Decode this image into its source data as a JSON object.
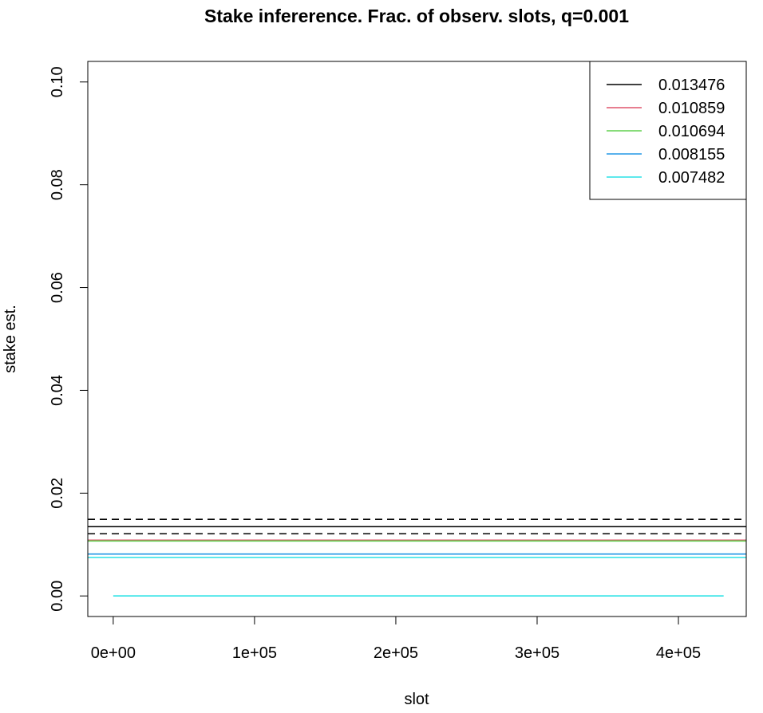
{
  "chart_data": {
    "type": "line",
    "title": "Stake infererence. Frac. of observ. slots, q=0.001",
    "xlabel": "slot",
    "ylabel": "stake est.",
    "xlim": [
      -18000,
      448000
    ],
    "ylim": [
      -0.004,
      0.104
    ],
    "x_ticks": [
      {
        "value": 0,
        "label": "0e+00"
      },
      {
        "value": 100000,
        "label": "1e+05"
      },
      {
        "value": 200000,
        "label": "2e+05"
      },
      {
        "value": 300000,
        "label": "3e+05"
      },
      {
        "value": 400000,
        "label": "4e+05"
      }
    ],
    "y_ticks": [
      {
        "value": 0.0,
        "label": "0.00"
      },
      {
        "value": 0.02,
        "label": "0.02"
      },
      {
        "value": 0.04,
        "label": "0.04"
      },
      {
        "value": 0.06,
        "label": "0.06"
      },
      {
        "value": 0.08,
        "label": "0.08"
      },
      {
        "value": 0.1,
        "label": "0.10"
      }
    ],
    "grid": false,
    "legend_position": "top-right",
    "series": [
      {
        "name": "0.013476",
        "color": "#000000",
        "x": [
          -18000,
          448000
        ],
        "y": [
          0.013476,
          0.013476
        ]
      },
      {
        "name": "0.010859",
        "color": "#DF536B",
        "x": [
          -18000,
          448000
        ],
        "y": [
          0.010859,
          0.010859
        ]
      },
      {
        "name": "0.010694",
        "color": "#61D04F",
        "x": [
          -18000,
          448000
        ],
        "y": [
          0.010694,
          0.010694
        ]
      },
      {
        "name": "0.008155",
        "color": "#2297E6",
        "x": [
          -18000,
          448000
        ],
        "y": [
          0.008155,
          0.008155
        ]
      },
      {
        "name": "0.007482",
        "color": "#28E2E5",
        "x": [
          -18000,
          448000
        ],
        "y": [
          0.007482,
          0.007482
        ]
      }
    ],
    "reference_lines": [
      {
        "color": "#000000",
        "style": "dashed",
        "x": [
          -18000,
          448000
        ],
        "y": [
          0.0149,
          0.0149
        ]
      },
      {
        "color": "#000000",
        "style": "dashed",
        "x": [
          -18000,
          448000
        ],
        "y": [
          0.0121,
          0.0121
        ]
      }
    ],
    "observed_slots": {
      "color": "#28E2E5",
      "x": [
        0,
        432000
      ],
      "y": [
        0,
        0
      ]
    }
  }
}
